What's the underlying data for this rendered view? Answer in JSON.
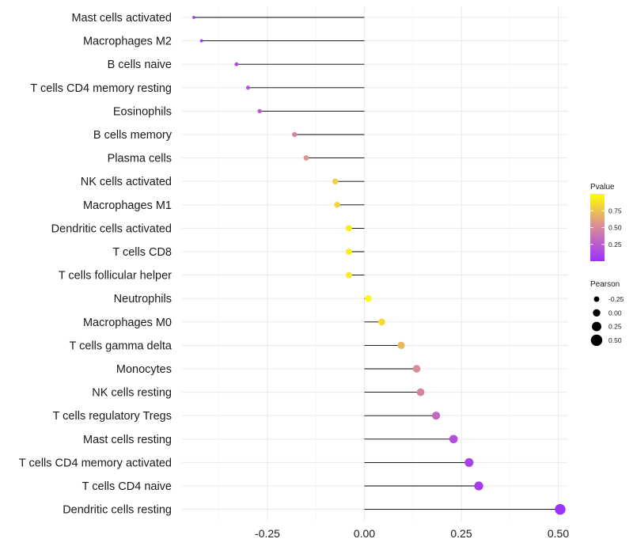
{
  "chart_data": {
    "type": "lollipop",
    "title": "",
    "xlabel": "",
    "ylabel": "",
    "xlim": [
      -0.49,
      0.53
    ],
    "x_ticks": [
      -0.25,
      0.0,
      0.25,
      0.5
    ],
    "x_tick_labels": [
      "-0.25",
      "0.00",
      "0.25",
      "0.50"
    ],
    "grid": true,
    "categories": [
      "Mast cells activated",
      "Macrophages M2",
      "B cells naive",
      "T cells CD4 memory resting",
      "Eosinophils",
      "B cells memory",
      "Plasma cells",
      "NK cells activated",
      "Macrophages M1",
      "Dendritic cells activated",
      "T cells CD8",
      "T cells follicular helper",
      "Neutrophils",
      "Macrophages M0",
      "T cells gamma delta",
      "Monocytes",
      "NK cells resting",
      "T cells regulatory  Tregs ",
      "Mast cells resting",
      "T cells CD4 memory activated",
      "T cells CD4 naive",
      "Dendritic cells resting"
    ],
    "pearson": [
      -0.44,
      -0.42,
      -0.33,
      -0.3,
      -0.27,
      -0.18,
      -0.15,
      -0.075,
      -0.07,
      -0.04,
      -0.04,
      -0.04,
      0.01,
      0.045,
      0.095,
      0.135,
      0.145,
      0.185,
      0.23,
      0.27,
      0.295,
      0.505
    ],
    "pvalue": [
      0.02,
      0.03,
      0.12,
      0.18,
      0.25,
      0.48,
      0.55,
      0.8,
      0.82,
      0.92,
      0.92,
      0.92,
      0.97,
      0.85,
      0.7,
      0.52,
      0.47,
      0.32,
      0.18,
      0.1,
      0.07,
      0.01
    ],
    "legend": {
      "position": "right",
      "color": {
        "title": "Pvalue",
        "ticks": [
          0.25,
          0.5,
          0.75
        ],
        "tick_labels": [
          "0.25",
          "0.50",
          "0.75"
        ],
        "range": [
          0.0,
          1.0
        ],
        "low_color": "#9b30ff",
        "mid_color": "#d9889f",
        "high_color": "#ffff00"
      },
      "size": {
        "title": "Pearson",
        "values": [
          -0.25,
          0.0,
          0.25,
          0.5
        ],
        "labels": [
          "-0.25",
          "0.00",
          "0.25",
          "0.50"
        ]
      }
    }
  }
}
